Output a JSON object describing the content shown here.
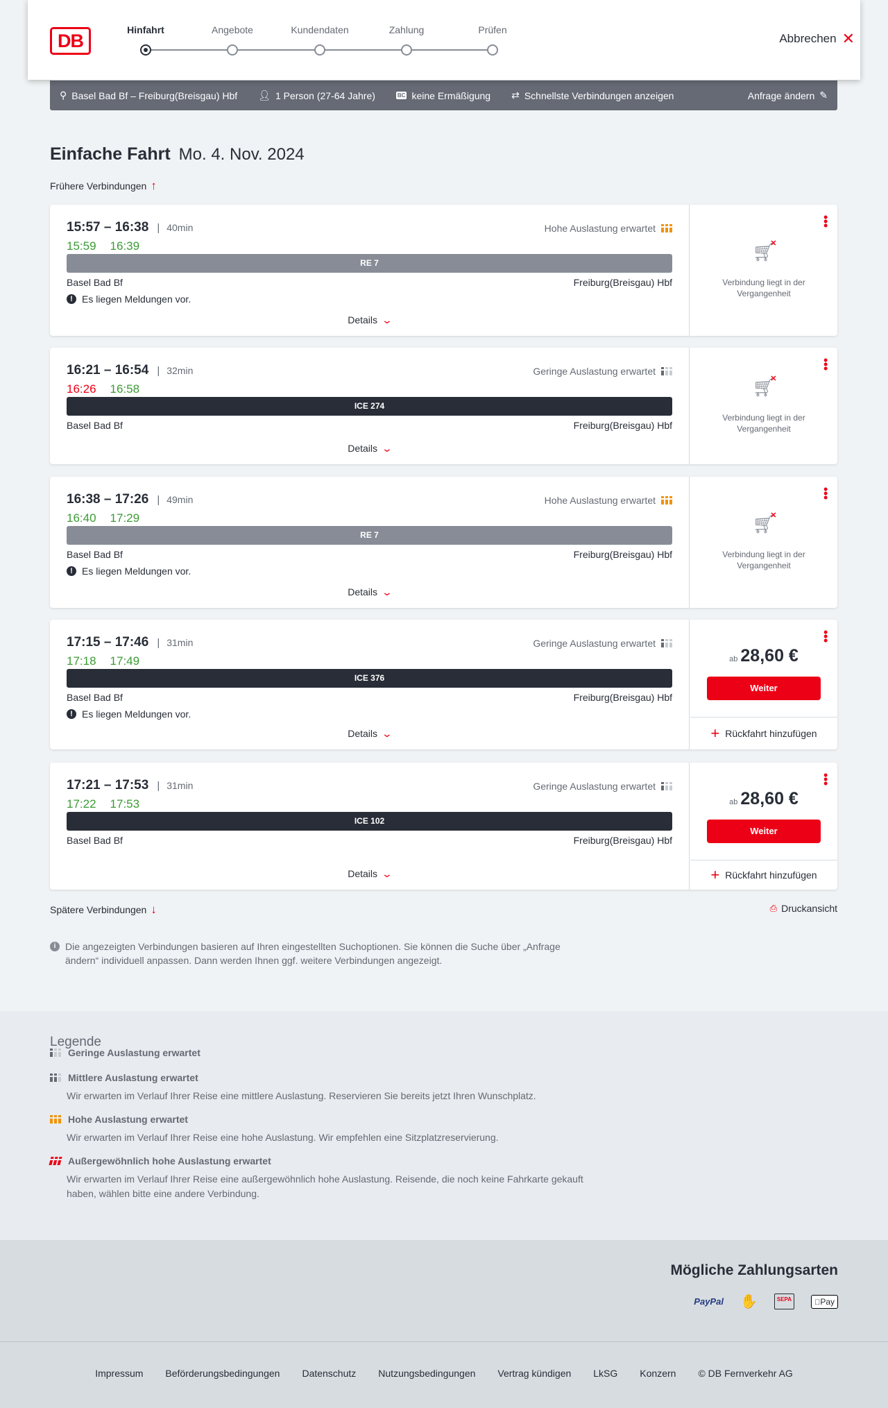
{
  "header": {
    "logo": "DB",
    "steps": [
      {
        "label": "Hinfahrt",
        "active": true
      },
      {
        "label": "Angebote",
        "active": false
      },
      {
        "label": "Kundendaten",
        "active": false
      },
      {
        "label": "Zahlung",
        "active": false
      },
      {
        "label": "Prüfen",
        "active": false
      }
    ],
    "cancel_label": "Abbrechen"
  },
  "infobar": {
    "route": "Basel Bad Bf – Freiburg(Breisgau) Hbf",
    "travellers": "1 Person (27-64 Jahre)",
    "discount_badge": "BC",
    "discount": "keine Ermäßigung",
    "fastest": "Schnellste Verbindungen anzeigen",
    "change_request": "Anfrage ändern"
  },
  "title": {
    "trip_type": "Einfache Fahrt",
    "date": "Mo. 4. Nov. 2024"
  },
  "earlier_label": "Frühere Verbindungen",
  "later_label": "Spätere Verbindungen",
  "print_label": "Druckansicht",
  "colors": {
    "brand": "#ec0016",
    "on_time": "#3c9b34",
    "delay": "#ec0016",
    "high_occupancy": "#f39200",
    "regional_bar": "#878c96",
    "ice_bar": "#282d37"
  },
  "connections": [
    {
      "times": "15:57 – 16:38",
      "duration": "40min",
      "occupancy": "Hohe Auslastung erwartet",
      "occ_level": "high",
      "real_dep": "15:59",
      "real_arr": "16:39",
      "dep_delayed": false,
      "train": "RE 7",
      "train_type": "regional",
      "from": "Basel Bad Bf",
      "to": "Freiburg(Breisgau) Hbf",
      "message": "Es liegen Meldungen vor.",
      "details": "Details",
      "past_text": "Verbindung liegt in der Vergangenheit"
    },
    {
      "times": "16:21 – 16:54",
      "duration": "32min",
      "occupancy": "Geringe Auslastung erwartet",
      "occ_level": "low",
      "real_dep": "16:26",
      "real_arr": "16:58",
      "dep_delayed": true,
      "train": "ICE 274",
      "train_type": "ice",
      "from": "Basel Bad Bf",
      "to": "Freiburg(Breisgau) Hbf",
      "details": "Details",
      "past_text": "Verbindung liegt in der Vergangenheit"
    },
    {
      "times": "16:38 – 17:26",
      "duration": "49min",
      "occupancy": "Hohe Auslastung erwartet",
      "occ_level": "high",
      "real_dep": "16:40",
      "real_arr": "17:29",
      "dep_delayed": false,
      "train": "RE 7",
      "train_type": "regional",
      "from": "Basel Bad Bf",
      "to": "Freiburg(Breisgau) Hbf",
      "message": "Es liegen Meldungen vor.",
      "details": "Details",
      "past_text": "Verbindung liegt in der Vergangenheit"
    },
    {
      "times": "17:15 – 17:46",
      "duration": "31min",
      "occupancy": "Geringe Auslastung erwartet",
      "occ_level": "low",
      "real_dep": "17:18",
      "real_arr": "17:49",
      "dep_delayed": false,
      "train": "ICE 376",
      "train_type": "ice",
      "from": "Basel Bad Bf",
      "to": "Freiburg(Breisgau) Hbf",
      "message": "Es liegen Meldungen vor.",
      "details": "Details",
      "price_prefix": "ab",
      "price": "28,60 €",
      "button": "Weiter",
      "return_label": "Rückfahrt hinzufügen"
    },
    {
      "times": "17:21 – 17:53",
      "duration": "31min",
      "occupancy": "Geringe Auslastung erwartet",
      "occ_level": "low",
      "real_dep": "17:22",
      "real_arr": "17:53",
      "dep_delayed": false,
      "train": "ICE 102",
      "train_type": "ice",
      "from": "Basel Bad Bf",
      "to": "Freiburg(Breisgau) Hbf",
      "details": "Details",
      "price_prefix": "ab",
      "price": "28,60 €",
      "button": "Weiter",
      "return_label": "Rückfahrt hinzufügen"
    }
  ],
  "note": "Die angezeigten Verbindungen basieren auf Ihren eingestellten Suchoptionen. Sie können die Suche über „Anfrage ändern“ individuell anpassen. Dann werden Ihnen ggf. weitere Verbindungen angezeigt.",
  "legend": {
    "title": "Legende",
    "items": [
      {
        "level": "low",
        "title": "Geringe Auslastung erwartet"
      },
      {
        "level": "mid",
        "title": "Mittlere Auslastung erwartet",
        "desc": "Wir erwarten im Verlauf Ihrer Reise eine mittlere Auslastung. Reservieren Sie bereits jetzt Ihren Wunschplatz."
      },
      {
        "level": "high",
        "title": "Hohe Auslastung erwartet",
        "desc": "Wir erwarten im Verlauf Ihrer Reise eine hohe Auslastung. Wir empfehlen eine Sitzplatzreservierung."
      },
      {
        "level": "extreme",
        "title": "Außergewöhnlich hohe Auslastung erwartet",
        "desc": "Wir erwarten im Verlauf Ihrer Reise eine außergewöhnlich hohe Auslastung. Reisende, die noch keine Fahrkarte gekauft haben, wählen bitte eine andere Verbindung."
      }
    ]
  },
  "payments": {
    "title": "Mögliche Zahlungsarten",
    "methods": [
      "PayPal",
      "SEPA",
      "Pay"
    ]
  },
  "footer": {
    "links": [
      "Impressum",
      "Beförderungsbedingungen",
      "Datenschutz",
      "Nutzungsbedingungen",
      "Vertrag kündigen",
      "LkSG",
      "Konzern",
      "© DB Fernverkehr AG"
    ]
  }
}
